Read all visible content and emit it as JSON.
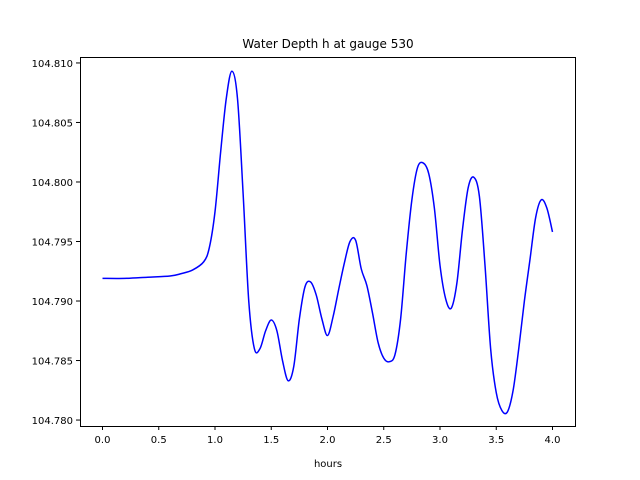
{
  "chart_data": {
    "type": "line",
    "title": "Water Depth h at gauge 530",
    "xlabel": "hours",
    "ylabel": "",
    "xlim": [
      -0.2,
      4.2
    ],
    "ylim": [
      104.7795,
      104.8105
    ],
    "x_ticks": [
      0.0,
      0.5,
      1.0,
      1.5,
      2.0,
      2.5,
      3.0,
      3.5,
      4.0
    ],
    "x_tick_labels": [
      "0.0",
      "0.5",
      "1.0",
      "1.5",
      "2.0",
      "2.5",
      "3.0",
      "3.5",
      "4.0"
    ],
    "y_ticks": [
      104.78,
      104.785,
      104.79,
      104.795,
      104.8,
      104.805,
      104.81
    ],
    "y_tick_labels": [
      "104.780",
      "104.785",
      "104.790",
      "104.795",
      "104.800",
      "104.805",
      "104.810"
    ],
    "grid": false,
    "series": [
      {
        "color": "#0000ff",
        "x": [
          0.0,
          0.2,
          0.4,
          0.6,
          0.7,
          0.8,
          0.9,
          0.95,
          1.0,
          1.05,
          1.1,
          1.15,
          1.2,
          1.25,
          1.3,
          1.35,
          1.4,
          1.45,
          1.5,
          1.55,
          1.6,
          1.65,
          1.7,
          1.75,
          1.8,
          1.85,
          1.9,
          1.95,
          2.0,
          2.05,
          2.1,
          2.15,
          2.2,
          2.25,
          2.3,
          2.35,
          2.4,
          2.45,
          2.5,
          2.55,
          2.6,
          2.65,
          2.7,
          2.75,
          2.8,
          2.85,
          2.9,
          2.95,
          3.0,
          3.05,
          3.1,
          3.15,
          3.2,
          3.25,
          3.3,
          3.35,
          3.4,
          3.45,
          3.5,
          3.55,
          3.6,
          3.65,
          3.7,
          3.75,
          3.8,
          3.85,
          3.9,
          3.95,
          4.0
        ],
        "y": [
          104.7919,
          104.7919,
          104.792,
          104.7921,
          104.7923,
          104.7926,
          104.7933,
          104.7945,
          104.7975,
          104.8025,
          104.807,
          104.8093,
          104.807,
          104.799,
          104.79,
          104.786,
          104.786,
          104.7875,
          104.7884,
          104.7875,
          104.785,
          104.7833,
          104.7845,
          104.7885,
          104.7912,
          104.7916,
          104.7905,
          104.7885,
          104.7871,
          104.7887,
          104.791,
          104.7932,
          104.795,
          104.7951,
          104.7927,
          104.7913,
          104.789,
          104.7865,
          104.7852,
          104.7849,
          104.7855,
          104.7885,
          104.794,
          104.7985,
          104.8012,
          104.8016,
          104.8007,
          104.7978,
          104.793,
          104.7902,
          104.7894,
          104.7915,
          104.796,
          104.7995,
          104.8004,
          104.7988,
          104.793,
          104.786,
          104.7823,
          104.7808,
          104.7807,
          104.7825,
          104.786,
          104.79,
          104.7935,
          104.797,
          104.7985,
          104.7978,
          104.7958
        ]
      }
    ]
  }
}
